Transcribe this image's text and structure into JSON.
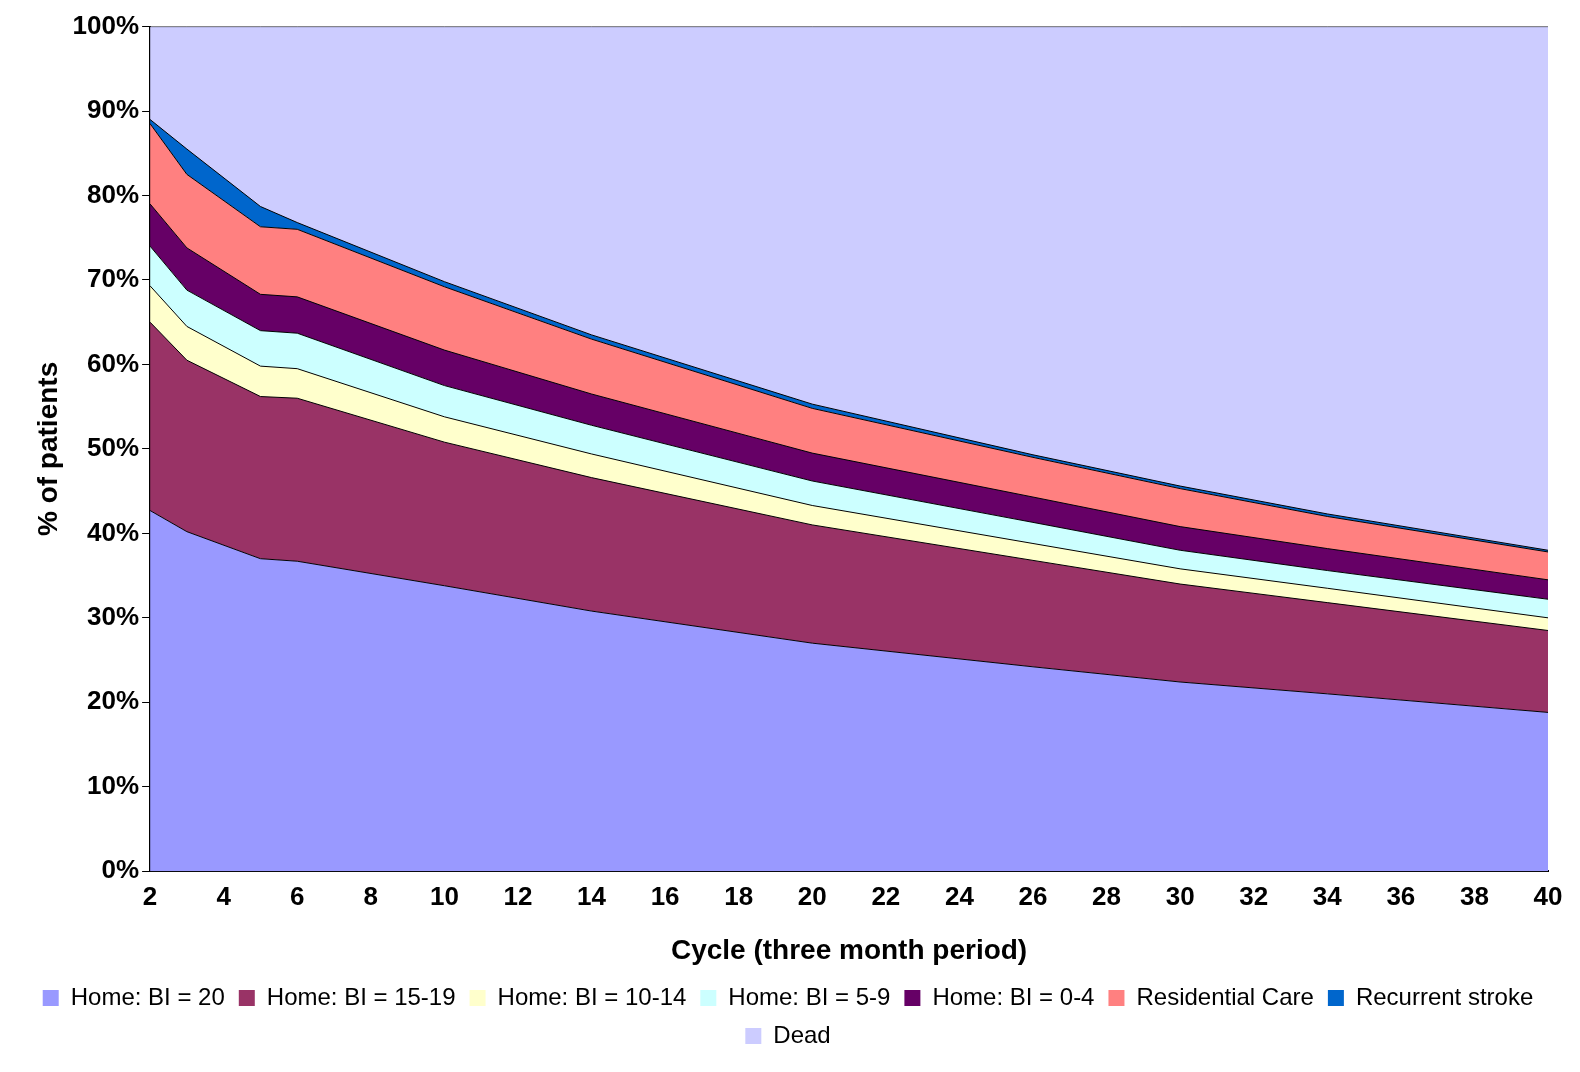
{
  "chart_data": {
    "type": "area",
    "stacked": true,
    "xlabel": "Cycle (three month period)",
    "ylabel": "% of patients",
    "x": [
      2,
      3,
      5,
      6,
      10,
      14,
      20,
      26,
      30,
      34,
      40
    ],
    "xlim": [
      2,
      40
    ],
    "xticks": [
      2,
      4,
      6,
      8,
      10,
      12,
      14,
      16,
      18,
      20,
      22,
      24,
      26,
      28,
      30,
      32,
      34,
      36,
      38,
      40
    ],
    "ylim": [
      0,
      100
    ],
    "yticks": [
      {
        "value": 0,
        "label": "0%"
      },
      {
        "value": 10,
        "label": "10%"
      },
      {
        "value": 20,
        "label": "20%"
      },
      {
        "value": 30,
        "label": "30%"
      },
      {
        "value": 40,
        "label": "40%"
      },
      {
        "value": 50,
        "label": "50%"
      },
      {
        "value": 60,
        "label": "60%"
      },
      {
        "value": 70,
        "label": "70%"
      },
      {
        "value": 80,
        "label": "80%"
      },
      {
        "value": 90,
        "label": "90%"
      },
      {
        "value": 100,
        "label": "100%"
      }
    ],
    "grid": false,
    "legend": "bottom",
    "series": [
      {
        "name": "Home: BI = 20",
        "color": "#9999ff",
        "values": [
          42.7,
          40.2,
          37,
          36.7,
          33.8,
          30.8,
          27,
          24.2,
          22.4,
          21,
          18.8
        ]
      },
      {
        "name": "Home: BI = 15-19",
        "color": "#993366",
        "values": [
          22.3,
          20.3,
          19.2,
          19.3,
          17,
          15.8,
          14,
          12.6,
          11.6,
          10.8,
          9.7
        ]
      },
      {
        "name": "Home: BI = 10-14",
        "color": "#ffffcc",
        "values": [
          4.3,
          4,
          3.6,
          3.5,
          3,
          2.8,
          2.3,
          2,
          1.8,
          1.7,
          1.5
        ]
      },
      {
        "name": "Home: BI = 5-9",
        "color": "#ccffff",
        "values": [
          4.7,
          4.3,
          4.2,
          4.2,
          3.7,
          3.4,
          2.9,
          2.5,
          2.2,
          2.1,
          2.2
        ]
      },
      {
        "name": "Home: BI = 0-4",
        "color": "#660066",
        "values": [
          5,
          5,
          4.3,
          4.3,
          4.2,
          3.7,
          3.3,
          3,
          2.8,
          2.6,
          2.3
        ]
      },
      {
        "name": "Residential Care",
        "color": "#ff8080",
        "values": [
          9.5,
          8.7,
          8,
          8,
          7.5,
          6.5,
          5.3,
          4.7,
          4.5,
          3.8,
          3.3
        ]
      },
      {
        "name": "Recurrent stroke",
        "color": "#0066cc",
        "values": [
          0.5,
          3,
          2.4,
          0.8,
          0.6,
          0.5,
          0.5,
          0.3,
          0.3,
          0.3,
          0.2
        ]
      },
      {
        "name": "Dead",
        "color": "#ccccff",
        "values": [
          11,
          14.5,
          21.3,
          23.2,
          30.2,
          36.5,
          44.7,
          50.7,
          54.4,
          57.7,
          62
        ]
      }
    ]
  }
}
